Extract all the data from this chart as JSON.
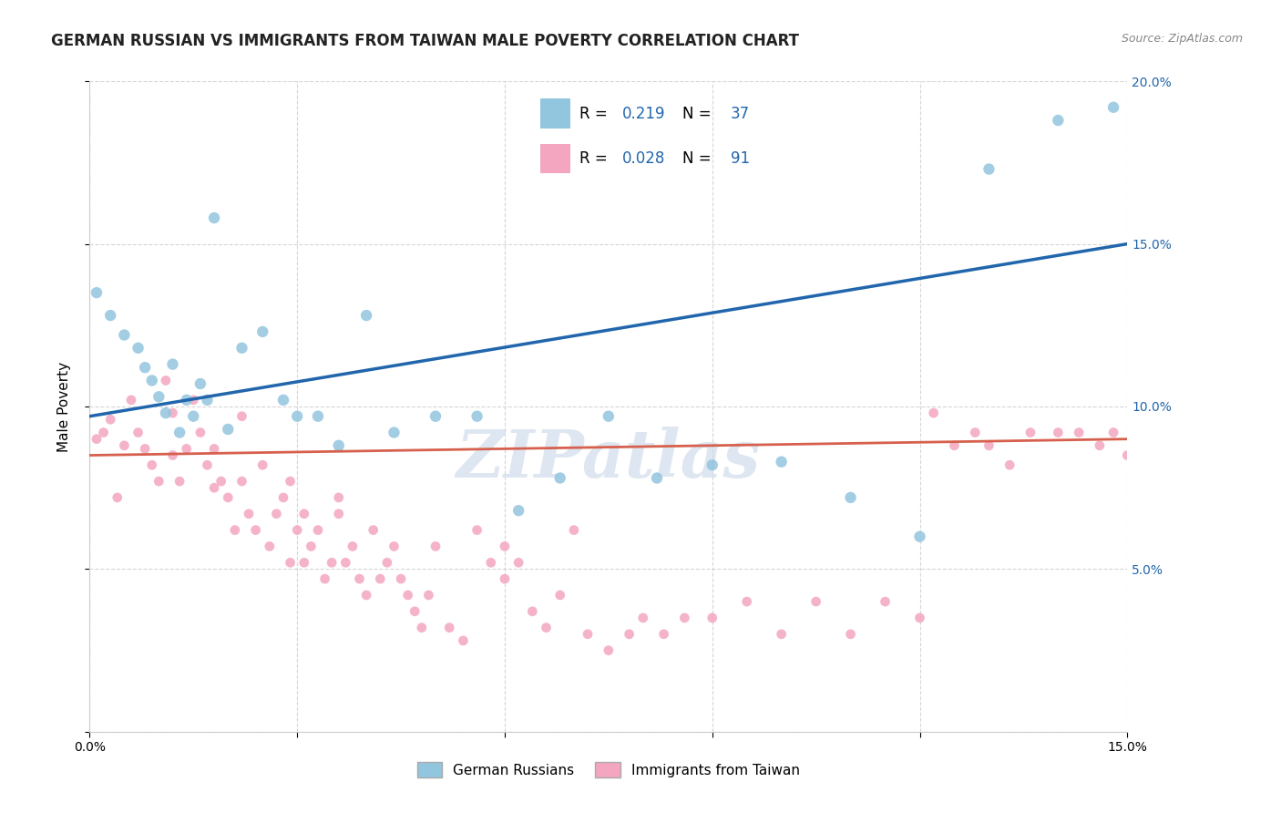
{
  "title": "GERMAN RUSSIAN VS IMMIGRANTS FROM TAIWAN MALE POVERTY CORRELATION CHART",
  "source": "Source: ZipAtlas.com",
  "ylabel": "Male Poverty",
  "x_min": 0.0,
  "x_max": 0.15,
  "y_min": 0.0,
  "y_max": 0.2,
  "x_ticks": [
    0.0,
    0.03,
    0.06,
    0.09,
    0.12,
    0.15
  ],
  "y_ticks": [
    0.0,
    0.05,
    0.1,
    0.15,
    0.2
  ],
  "blue_R": 0.219,
  "blue_N": 37,
  "pink_R": 0.028,
  "pink_N": 91,
  "blue_color": "#92c5de",
  "pink_color": "#f4a6c0",
  "blue_line_color": "#2166ac",
  "pink_line_color": "#d6604d",
  "watermark": "ZIPatlas",
  "legend_label_blue": "German Russians",
  "legend_label_pink": "Immigrants from Taiwan",
  "blue_scatter_x": [
    0.001,
    0.003,
    0.005,
    0.007,
    0.008,
    0.009,
    0.01,
    0.011,
    0.012,
    0.013,
    0.014,
    0.015,
    0.016,
    0.017,
    0.018,
    0.02,
    0.022,
    0.025,
    0.028,
    0.03,
    0.033,
    0.036,
    0.04,
    0.044,
    0.05,
    0.056,
    0.062,
    0.068,
    0.075,
    0.082,
    0.09,
    0.1,
    0.11,
    0.12,
    0.13,
    0.14,
    0.148
  ],
  "blue_scatter_y": [
    0.135,
    0.128,
    0.122,
    0.118,
    0.112,
    0.108,
    0.103,
    0.098,
    0.113,
    0.092,
    0.102,
    0.097,
    0.107,
    0.102,
    0.158,
    0.093,
    0.118,
    0.123,
    0.102,
    0.097,
    0.097,
    0.088,
    0.128,
    0.092,
    0.097,
    0.097,
    0.068,
    0.078,
    0.097,
    0.078,
    0.082,
    0.083,
    0.072,
    0.06,
    0.173,
    0.188,
    0.192
  ],
  "pink_scatter_x": [
    0.001,
    0.002,
    0.003,
    0.004,
    0.005,
    0.006,
    0.007,
    0.008,
    0.009,
    0.01,
    0.011,
    0.012,
    0.012,
    0.013,
    0.014,
    0.015,
    0.016,
    0.017,
    0.018,
    0.018,
    0.019,
    0.02,
    0.021,
    0.022,
    0.022,
    0.023,
    0.024,
    0.025,
    0.026,
    0.027,
    0.028,
    0.029,
    0.029,
    0.03,
    0.031,
    0.031,
    0.032,
    0.033,
    0.034,
    0.035,
    0.036,
    0.036,
    0.037,
    0.038,
    0.039,
    0.04,
    0.041,
    0.042,
    0.043,
    0.044,
    0.045,
    0.046,
    0.047,
    0.048,
    0.049,
    0.05,
    0.052,
    0.054,
    0.056,
    0.058,
    0.06,
    0.06,
    0.062,
    0.064,
    0.066,
    0.068,
    0.07,
    0.072,
    0.075,
    0.078,
    0.08,
    0.083,
    0.086,
    0.09,
    0.095,
    0.1,
    0.105,
    0.11,
    0.115,
    0.12,
    0.122,
    0.125,
    0.128,
    0.13,
    0.133,
    0.136,
    0.14,
    0.143,
    0.146,
    0.148,
    0.15
  ],
  "pink_scatter_y": [
    0.09,
    0.092,
    0.096,
    0.072,
    0.088,
    0.102,
    0.092,
    0.087,
    0.082,
    0.077,
    0.108,
    0.098,
    0.085,
    0.077,
    0.087,
    0.102,
    0.092,
    0.082,
    0.087,
    0.075,
    0.077,
    0.072,
    0.062,
    0.077,
    0.097,
    0.067,
    0.062,
    0.082,
    0.057,
    0.067,
    0.072,
    0.077,
    0.052,
    0.062,
    0.067,
    0.052,
    0.057,
    0.062,
    0.047,
    0.052,
    0.072,
    0.067,
    0.052,
    0.057,
    0.047,
    0.042,
    0.062,
    0.047,
    0.052,
    0.057,
    0.047,
    0.042,
    0.037,
    0.032,
    0.042,
    0.057,
    0.032,
    0.028,
    0.062,
    0.052,
    0.057,
    0.047,
    0.052,
    0.037,
    0.032,
    0.042,
    0.062,
    0.03,
    0.025,
    0.03,
    0.035,
    0.03,
    0.035,
    0.035,
    0.04,
    0.03,
    0.04,
    0.03,
    0.04,
    0.035,
    0.098,
    0.088,
    0.092,
    0.088,
    0.082,
    0.092,
    0.092,
    0.092,
    0.088,
    0.092,
    0.085
  ],
  "background_color": "#ffffff",
  "grid_color": "#cccccc",
  "title_fontsize": 12,
  "axis_label_fontsize": 11,
  "tick_fontsize": 10,
  "watermark_color": "#c8d8e8",
  "watermark_fontsize": 52,
  "blue_line_x": [
    0.0,
    0.15
  ],
  "blue_line_y": [
    0.097,
    0.15
  ],
  "pink_line_x": [
    0.0,
    0.15
  ],
  "pink_line_y": [
    0.085,
    0.09
  ]
}
